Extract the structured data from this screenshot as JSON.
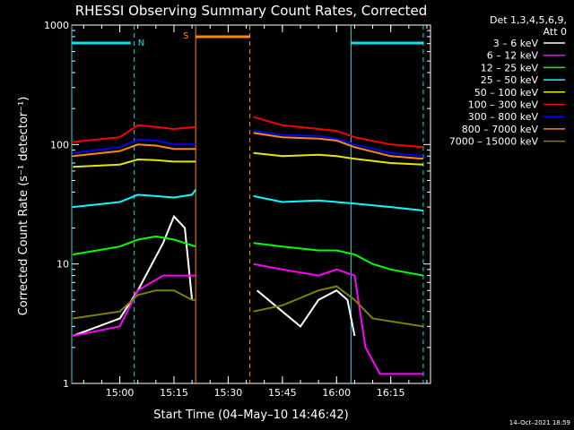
{
  "chart_data": {
    "type": "line",
    "title": "RHESSI Observing Summary Count Rates, Corrected",
    "xlabel": "Start Time (04–May–10 14:46:42)",
    "ylabel": "Corrected Count Rate (s⁻¹ detector⁻¹)",
    "yscale": "log",
    "ylim": [
      1,
      1000
    ],
    "xlim": [
      "14:46:42",
      "16:26:00"
    ],
    "y_ticks": [
      "1",
      "10",
      "100",
      "1000"
    ],
    "x_ticks": [
      "15:00",
      "15:15",
      "15:30",
      "15:45",
      "16:00",
      "16:15"
    ],
    "legend_header": [
      "Det 1,3,4,5,6,9,",
      "Att 0"
    ],
    "legend_position": "right",
    "footer": "14–Oct–2021 18:59",
    "flags": [
      {
        "label": "N",
        "color": "#00e5ee"
      },
      {
        "label": "S",
        "color": "#ff8c00"
      }
    ],
    "gap": {
      "start": "15:22",
      "end": "15:37"
    },
    "markers": [
      {
        "time": "14:46:42",
        "color": "#00e5ee",
        "style": "solid"
      },
      {
        "time": "15:04",
        "color": "#00e5ee",
        "style": "dashed"
      },
      {
        "time": "15:21",
        "color": "#ff8c00",
        "style": "solid"
      },
      {
        "time": "15:36",
        "color": "#ff8c00",
        "style": "dashed"
      },
      {
        "time": "16:04",
        "color": "#00e5ee",
        "style": "solid"
      },
      {
        "time": "16:24",
        "color": "#00e5ee",
        "style": "dashed"
      }
    ],
    "series": [
      {
        "name": "3 – 6 keV",
        "color": "#ffffff",
        "points": [
          [
            "14:47",
            2.5
          ],
          [
            "15:00",
            3.5
          ],
          [
            "15:05",
            6
          ],
          [
            "15:12",
            15
          ],
          [
            "15:15",
            25
          ],
          [
            "15:18",
            20
          ],
          [
            "15:20",
            5
          ],
          [
            "15:38",
            6
          ],
          [
            "15:45",
            4
          ],
          [
            "15:50",
            3
          ],
          [
            "15:55",
            5
          ],
          [
            "16:00",
            6
          ],
          [
            "16:03",
            5
          ],
          [
            "16:05",
            2.5
          ]
        ]
      },
      {
        "name": "6 – 12 keV",
        "color": "#ff00ff",
        "points": [
          [
            "14:47",
            2.5
          ],
          [
            "15:00",
            3
          ],
          [
            "15:05",
            6
          ],
          [
            "15:12",
            8
          ],
          [
            "15:18",
            8
          ],
          [
            "15:21",
            8
          ],
          [
            "15:37",
            10
          ],
          [
            "15:45",
            9
          ],
          [
            "15:55",
            8
          ],
          [
            "16:00",
            9
          ],
          [
            "16:05",
            8
          ],
          [
            "16:08",
            2
          ],
          [
            "16:12",
            1.2
          ],
          [
            "16:24",
            1.2
          ]
        ]
      },
      {
        "name": "12 – 25 keV",
        "color": "#00ff00",
        "points": [
          [
            "14:47",
            12
          ],
          [
            "15:00",
            14
          ],
          [
            "15:05",
            16
          ],
          [
            "15:10",
            17
          ],
          [
            "15:15",
            16
          ],
          [
            "15:21",
            14
          ],
          [
            "15:37",
            15
          ],
          [
            "15:45",
            14
          ],
          [
            "15:55",
            13
          ],
          [
            "16:00",
            13
          ],
          [
            "16:05",
            12
          ],
          [
            "16:10",
            10
          ],
          [
            "16:15",
            9
          ],
          [
            "16:24",
            8
          ]
        ]
      },
      {
        "name": "25 – 50 keV",
        "color": "#00ffff",
        "points": [
          [
            "14:47",
            30
          ],
          [
            "15:00",
            33
          ],
          [
            "15:05",
            38
          ],
          [
            "15:10",
            37
          ],
          [
            "15:15",
            36
          ],
          [
            "15:20",
            38
          ],
          [
            "15:21",
            42
          ],
          [
            "15:37",
            37
          ],
          [
            "15:45",
            33
          ],
          [
            "15:55",
            34
          ],
          [
            "16:00",
            33
          ],
          [
            "16:05",
            32
          ],
          [
            "16:15",
            30
          ],
          [
            "16:24",
            28
          ]
        ]
      },
      {
        "name": "50 – 100 keV",
        "color": "#e6e600",
        "points": [
          [
            "14:47",
            65
          ],
          [
            "15:00",
            68
          ],
          [
            "15:05",
            75
          ],
          [
            "15:10",
            74
          ],
          [
            "15:15",
            72
          ],
          [
            "15:21",
            72
          ],
          [
            "15:37",
            85
          ],
          [
            "15:45",
            80
          ],
          [
            "15:55",
            82
          ],
          [
            "16:00",
            80
          ],
          [
            "16:05",
            76
          ],
          [
            "16:15",
            70
          ],
          [
            "16:24",
            68
          ]
        ]
      },
      {
        "name": "100 – 300 keV",
        "color": "#ff0000",
        "points": [
          [
            "14:47",
            105
          ],
          [
            "15:00",
            115
          ],
          [
            "15:05",
            145
          ],
          [
            "15:10",
            140
          ],
          [
            "15:15",
            135
          ],
          [
            "15:21",
            140
          ],
          [
            "15:37",
            170
          ],
          [
            "15:45",
            145
          ],
          [
            "15:55",
            135
          ],
          [
            "16:00",
            130
          ],
          [
            "16:05",
            115
          ],
          [
            "16:15",
            100
          ],
          [
            "16:24",
            95
          ]
        ]
      },
      {
        "name": "300 – 800 keV",
        "color": "#0000ff",
        "points": [
          [
            "14:47",
            85
          ],
          [
            "15:00",
            95
          ],
          [
            "15:05",
            110
          ],
          [
            "15:10",
            108
          ],
          [
            "15:15",
            100
          ],
          [
            "15:21",
            100
          ],
          [
            "15:37",
            130
          ],
          [
            "15:45",
            120
          ],
          [
            "15:55",
            118
          ],
          [
            "16:00",
            112
          ],
          [
            "16:05",
            100
          ],
          [
            "16:15",
            85
          ],
          [
            "16:24",
            80
          ]
        ]
      },
      {
        "name": "800 – 7000 keV",
        "color": "#ff8c00",
        "points": [
          [
            "14:47",
            80
          ],
          [
            "15:00",
            88
          ],
          [
            "15:05",
            100
          ],
          [
            "15:10",
            98
          ],
          [
            "15:15",
            92
          ],
          [
            "15:21",
            92
          ],
          [
            "15:37",
            125
          ],
          [
            "15:45",
            115
          ],
          [
            "15:55",
            112
          ],
          [
            "16:00",
            108
          ],
          [
            "16:05",
            95
          ],
          [
            "16:15",
            80
          ],
          [
            "16:24",
            76
          ]
        ]
      },
      {
        "name": "7000 – 15000 keV",
        "color": "#808000",
        "points": [
          [
            "14:47",
            3.5
          ],
          [
            "15:00",
            4
          ],
          [
            "15:05",
            5.5
          ],
          [
            "15:10",
            6
          ],
          [
            "15:15",
            6
          ],
          [
            "15:20",
            5
          ],
          [
            "15:21",
            5
          ],
          [
            "15:37",
            4
          ],
          [
            "15:45",
            4.5
          ],
          [
            "15:55",
            6
          ],
          [
            "16:00",
            6.5
          ],
          [
            "16:05",
            5
          ],
          [
            "16:10",
            3.5
          ],
          [
            "16:24",
            3
          ]
        ]
      }
    ]
  }
}
